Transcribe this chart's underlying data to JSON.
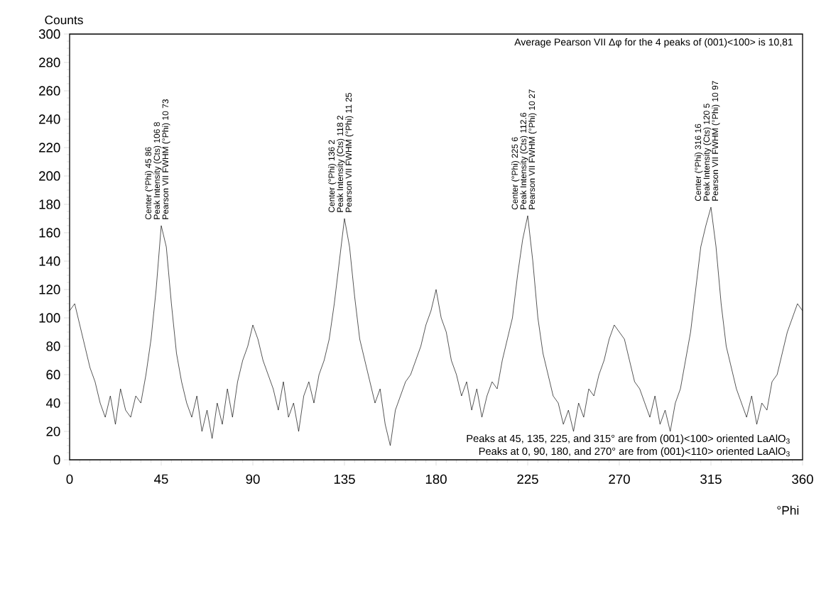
{
  "chart_data": {
    "type": "line",
    "xlabel": "°Phi",
    "ylabel": "Counts",
    "xlim": [
      0,
      360
    ],
    "ylim": [
      0,
      300
    ],
    "xticks": [
      0,
      45,
      90,
      135,
      180,
      225,
      270,
      315,
      360
    ],
    "yticks": [
      0,
      20,
      40,
      60,
      80,
      100,
      120,
      140,
      160,
      180,
      200,
      220,
      240,
      260,
      280,
      300
    ],
    "grid": false,
    "series": [
      {
        "color": "#000000",
        "x": [
          0,
          2.5,
          5,
          7.5,
          10,
          12.5,
          15,
          17.5,
          20,
          22.5,
          25,
          27.5,
          30,
          32.5,
          35,
          37.5,
          40,
          42.5,
          45,
          47.5,
          50,
          52.5,
          55,
          57.5,
          60,
          62.5,
          65,
          67.5,
          70,
          72.5,
          75,
          77.5,
          80,
          82.5,
          85,
          87.5,
          90,
          92.5,
          95,
          97.5,
          100,
          102.5,
          105,
          107.5,
          110,
          112.5,
          115,
          117.5,
          120,
          122.5,
          125,
          127.5,
          130,
          132.5,
          135,
          137.5,
          140,
          142.5,
          145,
          147.5,
          150,
          152.5,
          155,
          157.5,
          160,
          162.5,
          165,
          167.5,
          170,
          172.5,
          175,
          177.5,
          180,
          182.5,
          185,
          187.5,
          190,
          192.5,
          195,
          197.5,
          200,
          202.5,
          205,
          207.5,
          210,
          212.5,
          215,
          217.5,
          220,
          222.5,
          225,
          227.5,
          230,
          232.5,
          235,
          237.5,
          240,
          242.5,
          245,
          247.5,
          250,
          252.5,
          255,
          257.5,
          260,
          262.5,
          265,
          267.5,
          270,
          272.5,
          275,
          277.5,
          280,
          282.5,
          285,
          287.5,
          290,
          292.5,
          295,
          297.5,
          300,
          302.5,
          305,
          307.5,
          310,
          312.5,
          315,
          317.5,
          320,
          322.5,
          325,
          327.5,
          330,
          332.5,
          335,
          337.5,
          340,
          342.5,
          345,
          347.5,
          350,
          352.5,
          355,
          357.5,
          360
        ],
        "values": [
          105,
          110,
          95,
          80,
          65,
          55,
          40,
          30,
          45,
          25,
          50,
          35,
          30,
          45,
          40,
          60,
          85,
          120,
          165,
          150,
          110,
          75,
          55,
          40,
          30,
          45,
          20,
          35,
          15,
          40,
          25,
          50,
          30,
          55,
          70,
          80,
          95,
          85,
          70,
          60,
          50,
          35,
          55,
          30,
          40,
          20,
          45,
          55,
          40,
          60,
          70,
          85,
          110,
          140,
          170,
          150,
          115,
          85,
          70,
          55,
          40,
          50,
          25,
          10,
          35,
          45,
          55,
          60,
          70,
          80,
          95,
          105,
          120,
          100,
          90,
          70,
          60,
          45,
          55,
          35,
          50,
          30,
          45,
          55,
          50,
          70,
          85,
          100,
          130,
          155,
          172,
          140,
          100,
          75,
          60,
          45,
          40,
          25,
          35,
          20,
          40,
          30,
          50,
          45,
          60,
          70,
          85,
          95,
          90,
          85,
          70,
          55,
          50,
          40,
          30,
          45,
          25,
          35,
          20,
          40,
          50,
          70,
          90,
          120,
          150,
          165,
          178,
          150,
          110,
          80,
          65,
          50,
          40,
          30,
          45,
          25,
          40,
          35,
          55,
          60,
          75,
          90,
          100,
          110,
          105
        ]
      }
    ],
    "annotations": [
      "Average Pearson VII Δφ  for the 4 peaks of (001)<100> is 10,81",
      "Center (°Phi)  45 86",
      "Peak Intensity (Cts)  106 8",
      "Pearson VII FWHM (°Phi)  10 73",
      "Center (°Phi)  136 2",
      "Peak Intensity (Cts)  118 2",
      "Pearson VII FWHM (°Phi)  11 25",
      "Center (°Phi)  225 6",
      "Peak Intensity (Cts)  112.6",
      "Pearson VII FWHM (°Phi)  10 27",
      "Center (°Phi)  316 16",
      "Peak Intensity (Cts)  120 5",
      "Pearson VII FWHM (°Phi)  10 97",
      "Peaks at 45, 135, 225, and 315° are from (001)<100> oriented LaAlO$_{3}$",
      "Peaks at 0, 90, 180, and 270° are from (001)<110> oriented LaAlO$_{3}$"
    ]
  }
}
